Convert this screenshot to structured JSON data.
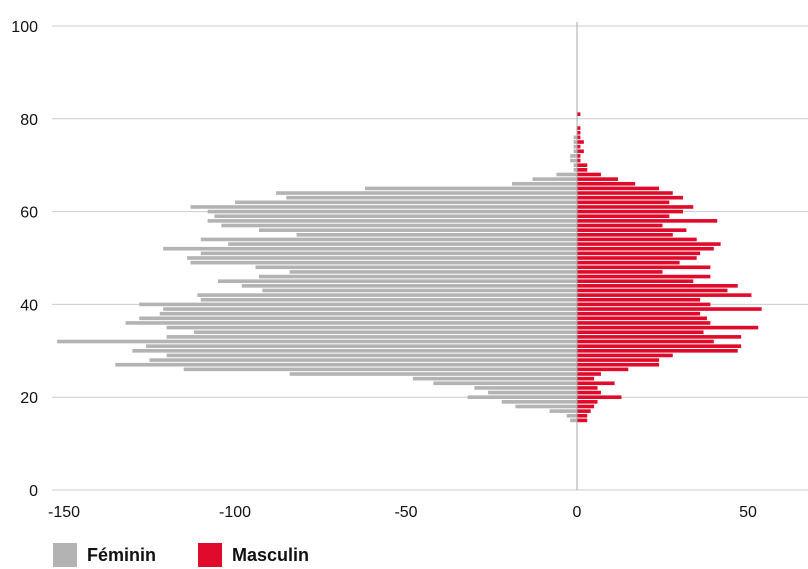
{
  "colors": {
    "female": "#b3b3b3",
    "male": "#e00a2a",
    "grid": "#cccccc",
    "axis": "#aaaaaa"
  },
  "chart_data": {
    "type": "bar",
    "orientation": "horizontal",
    "xlim": [
      -155,
      66
    ],
    "ylim": [
      0,
      100
    ],
    "x_ticks": [
      -150,
      -100,
      -50,
      0,
      50
    ],
    "x_tick_labels": [
      "-150",
      "-100",
      "-50",
      "0",
      "50"
    ],
    "y_ticks": [
      0,
      20,
      40,
      60,
      80,
      100
    ],
    "y_tick_labels": [
      "0",
      "20",
      "40",
      "60",
      "80",
      "100"
    ],
    "grid": "horizontal",
    "legend_position": "bottom-left",
    "ages": [
      15,
      16,
      17,
      18,
      19,
      20,
      21,
      22,
      23,
      24,
      25,
      26,
      27,
      28,
      29,
      30,
      31,
      32,
      33,
      34,
      35,
      36,
      37,
      38,
      39,
      40,
      41,
      42,
      43,
      44,
      45,
      46,
      47,
      48,
      49,
      50,
      51,
      52,
      53,
      54,
      55,
      56,
      57,
      58,
      59,
      60,
      61,
      62,
      63,
      64,
      65,
      66,
      67,
      68,
      69,
      70,
      71,
      72,
      73,
      74,
      75,
      76,
      77,
      78,
      79,
      80,
      81
    ],
    "series": [
      {
        "name": "Féminin",
        "values": [
          -2,
          -3,
          -8,
          -18,
          -22,
          -32,
          -26,
          -30,
          -42,
          -48,
          -84,
          -115,
          -135,
          -125,
          -120,
          -130,
          -126,
          -152,
          -120,
          -112,
          -120,
          -132,
          -128,
          -122,
          -121,
          -128,
          -110,
          -111,
          -92,
          -98,
          -105,
          -93,
          -84,
          -94,
          -113,
          -114,
          -110,
          -121,
          -102,
          -110,
          -82,
          -93,
          -104,
          -108,
          -106,
          -108,
          -113,
          -100,
          -85,
          -88,
          -62,
          -19,
          -13,
          -6,
          -1,
          -1,
          -2,
          -2,
          -1,
          -1,
          -1,
          -1,
          0,
          0,
          0,
          0,
          0
        ]
      },
      {
        "name": "Masculin",
        "values": [
          3,
          3,
          4,
          5,
          6,
          13,
          7,
          6,
          11,
          5,
          7,
          15,
          24,
          24,
          28,
          47,
          48,
          40,
          48,
          37,
          53,
          39,
          38,
          36,
          54,
          39,
          36,
          51,
          44,
          47,
          34,
          39,
          25,
          39,
          30,
          35,
          36,
          40,
          42,
          35,
          28,
          32,
          25,
          41,
          27,
          31,
          34,
          27,
          31,
          28,
          24,
          17,
          12,
          7,
          3,
          3,
          1,
          1,
          2,
          1,
          2,
          1,
          1,
          1,
          0,
          0,
          1
        ]
      }
    ]
  },
  "legend": [
    {
      "label": "Féminin",
      "key": "female"
    },
    {
      "label": "Masculin",
      "key": "male"
    }
  ]
}
